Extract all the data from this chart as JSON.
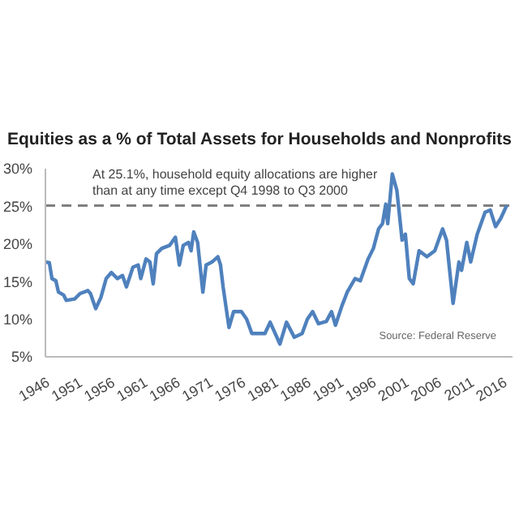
{
  "chart_data": {
    "type": "line",
    "title": "Equities as a % of Total Assets for Households and Nonprofits",
    "annotations": [
      "At 25.1%, household equity allocations are higher than at any time except Q4 1998 to Q3 2000",
      "Source:  Federal Reserve"
    ],
    "x": [
      1946,
      1946.6,
      1947,
      1947.6,
      1948,
      1948.8,
      1949.2,
      1950.5,
      1951.3,
      1952.5,
      1952.9,
      1953.7,
      1954.5,
      1955.3,
      1956.1,
      1957,
      1957.8,
      1958.4,
      1959.4,
      1960.2,
      1960.6,
      1961.4,
      1962,
      1962.5,
      1963,
      1963.8,
      1965,
      1965.9,
      1966.5,
      1967.1,
      1967.9,
      1968.3,
      1968.7,
      1969.3,
      1970.1,
      1970.6,
      1971.5,
      1972.4,
      1972.8,
      1973.2,
      1974.1,
      1974.8,
      1976,
      1976.8,
      1977.6,
      1979.6,
      1980.4,
      1981.9,
      1982.9,
      1984.1,
      1985.3,
      1986.1,
      1986.9,
      1987.8,
      1989,
      1989.8,
      1990.4,
      1991.4,
      1992.2,
      1993.4,
      1994.2,
      1995.4,
      1996.2,
      1997,
      1997.6,
      1998.1,
      1998.4,
      1999.1,
      1999.8,
      2000.6,
      2001.1,
      2001.7,
      2002.3,
      2003.2,
      2004.4,
      2005.6,
      2006.8,
      2007.4,
      2008.4,
      2009.3,
      2009.7,
      2010.5,
      2011.1,
      2012.1,
      2013.3,
      2014.1,
      2014.9,
      2015.7,
      2016.6
    ],
    "series": [
      {
        "color": "#4f81bd",
        "values": [
          17.6,
          17.5,
          15.4,
          15.1,
          13.6,
          13.2,
          12.5,
          12.7,
          13.4,
          13.8,
          13.4,
          11.4,
          12.9,
          15.4,
          16.2,
          15.4,
          15.8,
          14.3,
          16.9,
          17.2,
          15.4,
          18,
          17.6,
          14.7,
          18.7,
          19.4,
          19.8,
          20.9,
          17.2,
          19.8,
          20.2,
          19.1,
          21.6,
          20.2,
          13.6,
          17.2,
          17.6,
          18.3,
          17.2,
          14.3,
          8.9,
          11,
          11,
          10,
          8.1,
          8.1,
          9.6,
          6.7,
          9.6,
          7.6,
          8.1,
          10,
          11,
          9.4,
          9.7,
          11,
          9.2,
          11.8,
          13.6,
          15.4,
          15.1,
          18,
          19.4,
          22,
          22.7,
          25.3,
          22.7,
          29.3,
          27.1,
          20.5,
          21.3,
          15.4,
          14.7,
          19.1,
          18.3,
          19.1,
          22,
          20.5,
          12.1,
          17.6,
          16.5,
          20.2,
          17.6,
          21.3,
          24.2,
          24.5,
          22.3,
          23.4,
          25.1
        ]
      }
    ],
    "xlim": [
      1946,
      2017.5
    ],
    "xticks": [
      1946,
      1951,
      1956,
      1961,
      1966,
      1971,
      1976,
      1981,
      1986,
      1991,
      1996,
      2001,
      2006,
      2011,
      2016
    ],
    "ylim": [
      5,
      30
    ],
    "yticks": [
      {
        "value": 5,
        "label": "5%"
      },
      {
        "value": 10,
        "label": "10%"
      },
      {
        "value": 15,
        "label": "15%"
      },
      {
        "value": 20,
        "label": "20%"
      },
      {
        "value": 25,
        "label": "25%"
      },
      {
        "value": 30,
        "label": "30%"
      }
    ],
    "ref_lines": [
      {
        "axis": "y",
        "value": 25.1,
        "color": "#7f7f7f",
        "line_style": "dashed"
      }
    ],
    "marker": "none",
    "line_style": "solid",
    "grid": false
  }
}
